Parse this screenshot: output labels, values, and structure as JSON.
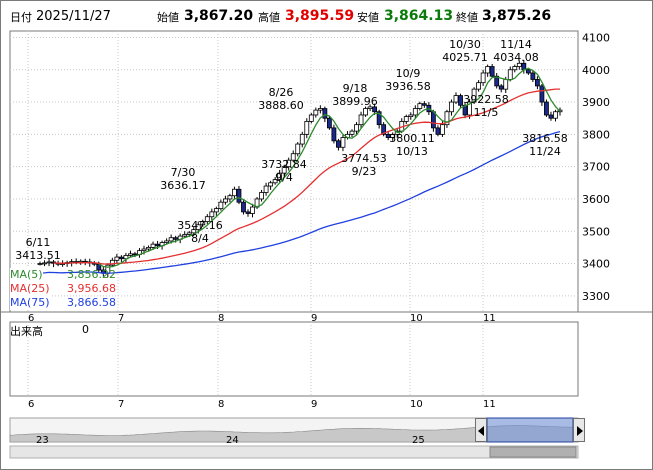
{
  "header": {
    "date_label": "日付",
    "date": "2025/11/27",
    "open_label": "始値",
    "open": "3,867.20",
    "high_label": "高値",
    "high": "3,895.59",
    "low_label": "安値",
    "low": "3,864.13",
    "close_label": "終値",
    "close": "3,875.26"
  },
  "ma_legend": [
    {
      "label": "MA(5)",
      "value": "3,856.22",
      "color": "#2e8b2e"
    },
    {
      "label": "MA(25)",
      "value": "3,956.68",
      "color": "#e53030"
    },
    {
      "label": "MA(75)",
      "value": "3,866.58",
      "color": "#2040e0"
    }
  ],
  "volume": {
    "label": "出来高",
    "value": "0"
  },
  "x_axis_months": [
    "6",
    "7",
    "8",
    "9",
    "10",
    "11"
  ],
  "nav_years": [
    "23",
    "24",
    "25"
  ],
  "colors": {
    "up": "#ffffff",
    "down": "#1a2a8a",
    "grid": "#c8c8c8"
  },
  "chart_data": {
    "type": "candlestick",
    "ylim": [
      3250,
      4120
    ],
    "y_ticks": [
      3300,
      3400,
      3500,
      3600,
      3700,
      3800,
      3900,
      4000,
      4100
    ],
    "x_ticks": [
      "6",
      "7",
      "8",
      "9",
      "10",
      "11"
    ],
    "annotations": [
      {
        "text": "6/11",
        "value": "3413.51",
        "type": "high"
      },
      {
        "text": "7/30",
        "value": "3636.17",
        "type": "high"
      },
      {
        "text": "8/4",
        "value": "3547.16",
        "type": "low"
      },
      {
        "text": "8/26",
        "value": "3888.60",
        "type": "high"
      },
      {
        "text": "9/4",
        "value": "3732.84",
        "type": "low"
      },
      {
        "text": "9/18",
        "value": "3899.96",
        "type": "high"
      },
      {
        "text": "9/23",
        "value": "3774.53",
        "type": "low"
      },
      {
        "text": "10/9",
        "value": "3936.58",
        "type": "high"
      },
      {
        "text": "10/13",
        "value": "3800.11",
        "type": "low"
      },
      {
        "text": "10/30",
        "value": "4025.71",
        "type": "high"
      },
      {
        "text": "11/5",
        "value": "3922.58",
        "type": "low"
      },
      {
        "text": "11/14",
        "value": "4034.08",
        "type": "high"
      },
      {
        "text": "11/24",
        "value": "3816.58",
        "type": "low"
      }
    ],
    "close_series": [
      3400,
      3402,
      3405,
      3401,
      3398,
      3400,
      3403,
      3406,
      3404,
      3407,
      3405,
      3402,
      3398,
      3380,
      3370,
      3395,
      3410,
      3420,
      3415,
      3425,
      3430,
      3428,
      3440,
      3445,
      3450,
      3460,
      3455,
      3465,
      3470,
      3480,
      3475,
      3485,
      3490,
      3495,
      3505,
      3520,
      3530,
      3545,
      3560,
      3570,
      3590,
      3600,
      3610,
      3630,
      3590,
      3560,
      3555,
      3575,
      3600,
      3620,
      3640,
      3650,
      3660,
      3680,
      3700,
      3720,
      3740,
      3770,
      3800,
      3840,
      3860,
      3875,
      3880,
      3850,
      3820,
      3780,
      3760,
      3790,
      3800,
      3810,
      3830,
      3860,
      3880,
      3885,
      3870,
      3830,
      3800,
      3790,
      3800,
      3810,
      3840,
      3855,
      3860,
      3880,
      3895,
      3890,
      3870,
      3820,
      3800,
      3830,
      3870,
      3900,
      3920,
      3890,
      3860,
      3900,
      3940,
      3960,
      3990,
      4010,
      3980,
      3950,
      3940,
      3970,
      4000,
      4010,
      4020,
      4000,
      3990,
      3970,
      3950,
      3900,
      3860,
      3850,
      3870,
      3875
    ]
  }
}
